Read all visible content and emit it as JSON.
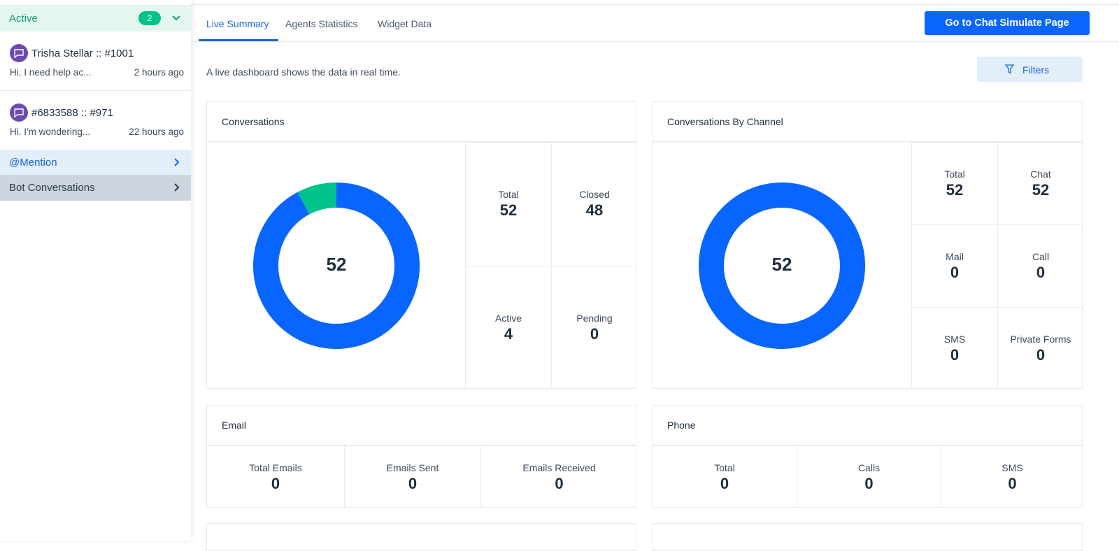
{
  "sidebar": {
    "active": {
      "label": "Active",
      "count": 2
    },
    "conversations": [
      {
        "name": "Trisha Stellar :: #1001",
        "preview": "Hi. I need help ac...",
        "time": "2 hours ago"
      },
      {
        "name": "#6833588 :: #971",
        "preview": "Hi. I'm wondering...",
        "time": "22 hours ago"
      }
    ],
    "mention": "@Mention",
    "bot": "Bot Conversations"
  },
  "tabs": [
    "Live Summary",
    "Agents Statistics",
    "Widget Data"
  ],
  "button": "Go to Chat Simulate Page",
  "description": "A live dashboard shows the data in real time.",
  "filters": "Filters",
  "conversations": {
    "title": "Conversations",
    "total": {
      "label": "Total",
      "value": 52
    },
    "breakdown": [
      {
        "label": "Closed",
        "value": 48,
        "color": "#0866ff"
      },
      {
        "label": "Active",
        "value": 4,
        "color": "#00c389"
      },
      {
        "label": "Pending",
        "value": 0
      }
    ]
  },
  "channels": {
    "title": "Conversations By Channel",
    "total": {
      "label": "Total",
      "value": 52
    },
    "breakdown": [
      {
        "label": "Chat",
        "value": 52,
        "color": "#0866ff"
      },
      {
        "label": "Mail",
        "value": 0
      },
      {
        "label": "Call",
        "value": 0
      },
      {
        "label": "SMS",
        "value": 0
      },
      {
        "label": "Private Forms",
        "value": 0
      }
    ]
  },
  "email": {
    "title": "Email",
    "stats": [
      {
        "label": "Total Emails",
        "value": 0
      },
      {
        "label": "Emails Sent",
        "value": 0
      },
      {
        "label": "Emails Received",
        "value": 0
      }
    ]
  },
  "phone": {
    "title": "Phone",
    "stats": [
      {
        "label": "Total",
        "value": 0
      },
      {
        "label": "Calls",
        "value": 0
      },
      {
        "label": "SMS",
        "value": 0
      }
    ]
  }
}
